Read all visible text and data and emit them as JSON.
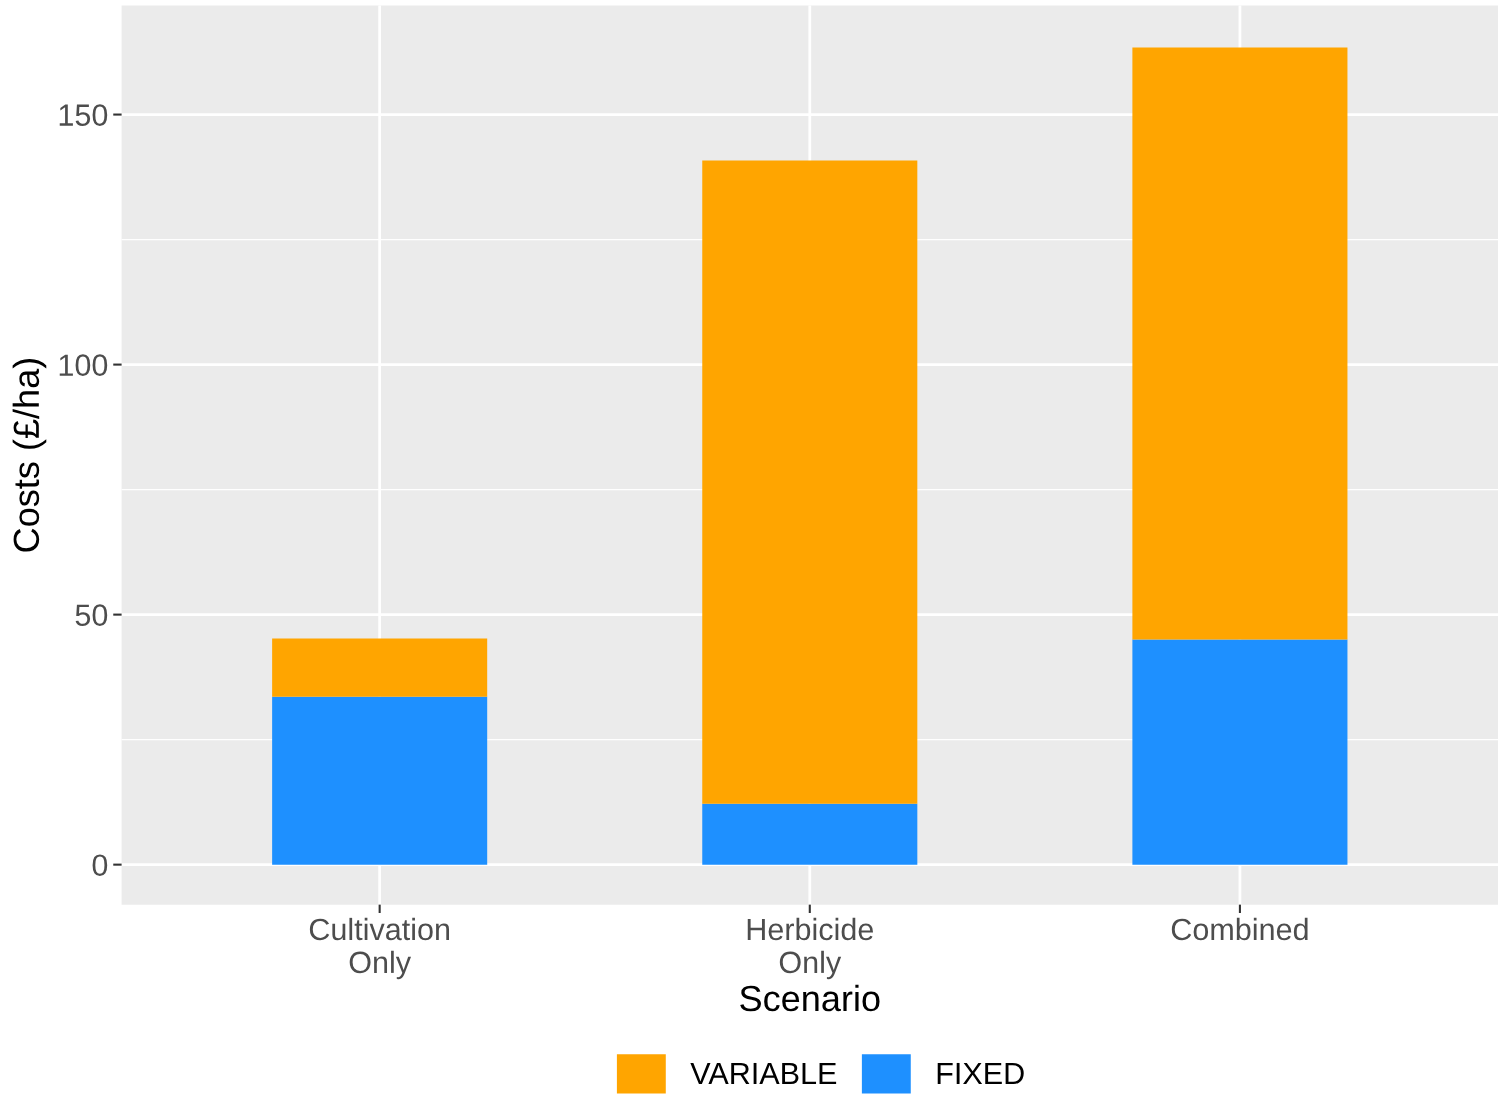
{
  "chart_data": {
    "type": "bar",
    "stacked": true,
    "xlabel": "Scenario",
    "ylabel": "Costs (£/ha)",
    "categories": [
      "Cultivation\nOnly",
      "Herbicide\nOnly",
      "Combined"
    ],
    "series": [
      {
        "name": "FIXED",
        "color": "#1e90ff",
        "values": [
          33.6,
          12.2,
          45.0
        ]
      },
      {
        "name": "VARIABLE",
        "color": "#ffa500",
        "values": [
          11.6,
          128.6,
          118.4
        ]
      }
    ],
    "ylim": [
      -8,
      171.8
    ],
    "yticks": [
      0,
      50,
      100,
      150
    ],
    "grid": true,
    "legend": "bottom"
  }
}
